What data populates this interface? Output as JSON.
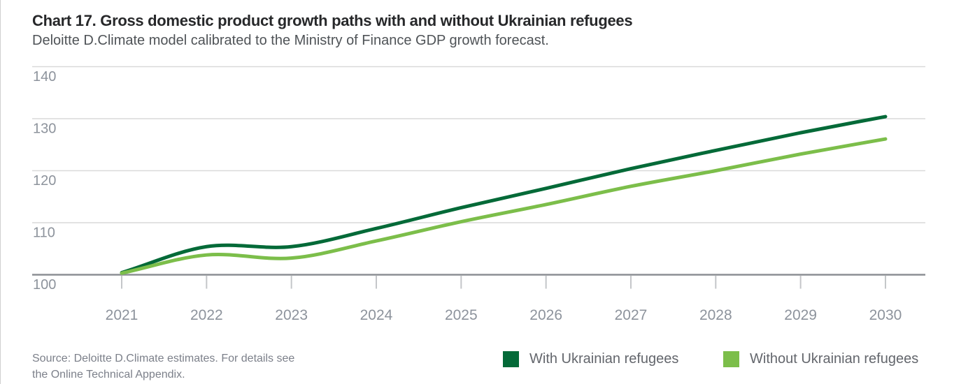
{
  "header": {
    "title": "Chart 17. Gross domestic product growth paths with and without Ukrainian refugees",
    "subtitle": "Deloitte D.Climate model calibrated to the Ministry of Finance GDP growth forecast."
  },
  "chart_data": {
    "type": "line",
    "x": [
      2021,
      2022,
      2023,
      2024,
      2025,
      2026,
      2027,
      2028,
      2029,
      2030
    ],
    "series": [
      {
        "name": "With Ukrainian refugees",
        "color": "#046a38",
        "values": [
          100.4,
          105.4,
          105.4,
          108.9,
          112.9,
          116.6,
          120.4,
          123.9,
          127.3,
          130.4
        ]
      },
      {
        "name": "Without Ukrainian refugees",
        "color": "#7cbe4a",
        "values": [
          100.3,
          103.8,
          103.2,
          106.5,
          110.2,
          113.5,
          117.0,
          120.0,
          123.2,
          126.1
        ]
      }
    ],
    "ylim": [
      100,
      140
    ],
    "ytick_step": 10,
    "grid": "horizontal",
    "legend_position": "bottom-right",
    "title": "Chart 17. Gross domestic product growth paths with and without Ukrainian refugees"
  },
  "legend": {
    "with_label": "With Ukrainian refugees",
    "without_label": "Without Ukrainian refugees"
  },
  "footer": {
    "source_line1": "Source: Deloitte D.Climate estimates. For details see",
    "source_line2": "the Online Technical Appendix."
  },
  "style": {
    "grid_color": "#d9d9d9",
    "axis_color": "#8c8f94",
    "tick_color": "#c4c6c9",
    "label_color": "#8d939c"
  }
}
